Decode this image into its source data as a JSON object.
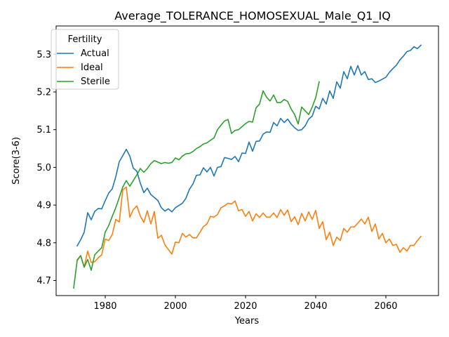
{
  "chart_data": {
    "type": "line",
    "title": "Average_TOLERANCE_HOMOSEXUAL_Male_Q1_IQ",
    "xlabel": "Years",
    "ylabel": "Score(3-6)",
    "xlim": [
      1966,
      2075
    ],
    "ylim": [
      4.66,
      5.375
    ],
    "xticks": [
      1980,
      2000,
      2020,
      2040,
      2060
    ],
    "yticks": [
      4.7,
      4.8,
      4.9,
      5.0,
      5.1,
      5.2,
      5.3
    ],
    "grid": false,
    "legend": {
      "title": "Fertility",
      "placement": "top-left"
    },
    "series": [
      {
        "name": "Actual",
        "color": "#1f77b4",
        "x": [
          1972,
          1973,
          1974,
          1975,
          1976,
          1977,
          1978,
          1979,
          1980,
          1981,
          1982,
          1983,
          1984,
          1985,
          1986,
          1987,
          1988,
          1989,
          1990,
          1991,
          1992,
          1993,
          1994,
          1995,
          1996,
          1997,
          1998,
          1999,
          2000,
          2001,
          2002,
          2003,
          2004,
          2005,
          2006,
          2007,
          2008,
          2009,
          2010,
          2011,
          2012,
          2013,
          2014,
          2015,
          2016,
          2017,
          2018,
          2019,
          2020,
          2021,
          2022,
          2023,
          2024,
          2025,
          2026,
          2027,
          2028,
          2029,
          2030,
          2031,
          2032,
          2033,
          2034,
          2035,
          2036,
          2037,
          2038,
          2039,
          2040,
          2041,
          2042,
          2043,
          2044,
          2045,
          2046,
          2047,
          2048,
          2049,
          2050,
          2051,
          2052,
          2053,
          2054,
          2055,
          2056,
          2057,
          2058,
          2059,
          2060,
          2061,
          2062,
          2063,
          2064,
          2065,
          2066,
          2067,
          2068,
          2069,
          2070
        ],
        "values": [
          4.792,
          4.808,
          4.828,
          4.88,
          4.861,
          4.883,
          4.891,
          4.89,
          4.912,
          4.932,
          4.943,
          4.975,
          5.015,
          5.031,
          5.048,
          5.03,
          4.998,
          4.99,
          4.958,
          4.933,
          4.945,
          4.928,
          4.92,
          4.912,
          4.893,
          4.884,
          4.89,
          4.882,
          4.893,
          4.899,
          4.905,
          4.918,
          4.942,
          4.956,
          4.979,
          4.98,
          4.999,
          4.988,
          5.0,
          4.977,
          5.0,
          5.002,
          5.026,
          5.024,
          5.021,
          5.029,
          5.015,
          5.038,
          5.037,
          5.067,
          5.043,
          5.069,
          5.07,
          5.088,
          5.094,
          5.093,
          5.119,
          5.11,
          5.13,
          5.119,
          5.128,
          5.115,
          5.105,
          5.098,
          5.1,
          5.11,
          5.128,
          5.136,
          5.162,
          5.155,
          5.183,
          5.168,
          5.203,
          5.183,
          5.227,
          5.21,
          5.254,
          5.235,
          5.268,
          5.245,
          5.27,
          5.245,
          5.254,
          5.233,
          5.235,
          5.225,
          5.229,
          5.234,
          5.239,
          5.252,
          5.262,
          5.271,
          5.285,
          5.295,
          5.307,
          5.31,
          5.32,
          5.315,
          5.324
        ]
      },
      {
        "name": "Ideal",
        "color": "#ff7f0e",
        "x": [
          1972,
          1973,
          1974,
          1975,
          1976,
          1977,
          1978,
          1979,
          1980,
          1981,
          1982,
          1983,
          1984,
          1985,
          1986,
          1987,
          1988,
          1989,
          1990,
          1991,
          1992,
          1993,
          1994,
          1995,
          1996,
          1997,
          1998,
          1999,
          2000,
          2001,
          2002,
          2003,
          2004,
          2005,
          2006,
          2007,
          2008,
          2009,
          2010,
          2011,
          2012,
          2013,
          2014,
          2015,
          2016,
          2017,
          2018,
          2019,
          2020,
          2021,
          2022,
          2023,
          2024,
          2025,
          2026,
          2027,
          2028,
          2029,
          2030,
          2031,
          2032,
          2033,
          2034,
          2035,
          2036,
          2037,
          2038,
          2039,
          2040,
          2041,
          2042,
          2043,
          2044,
          2045,
          2046,
          2047,
          2048,
          2049,
          2050,
          2051,
          2052,
          2053,
          2054,
          2055,
          2056,
          2057,
          2058,
          2059,
          2060,
          2061,
          2062,
          2063,
          2064,
          2065,
          2066,
          2067,
          2068,
          2069,
          2070
        ],
        "values": [
          4.755,
          4.766,
          4.736,
          4.778,
          4.748,
          4.75,
          4.76,
          4.768,
          4.81,
          4.806,
          4.822,
          4.862,
          4.855,
          4.94,
          4.948,
          4.868,
          4.888,
          4.898,
          4.871,
          4.854,
          4.885,
          4.85,
          4.883,
          4.812,
          4.82,
          4.795,
          4.782,
          4.77,
          4.802,
          4.8,
          4.825,
          4.815,
          4.822,
          4.813,
          4.813,
          4.828,
          4.843,
          4.85,
          4.87,
          4.868,
          4.875,
          4.893,
          4.898,
          4.905,
          4.903,
          4.911,
          4.885,
          4.888,
          4.87,
          4.883,
          4.858,
          4.877,
          4.867,
          4.879,
          4.868,
          4.868,
          4.879,
          4.867,
          4.888,
          4.873,
          4.887,
          4.856,
          4.869,
          4.848,
          4.878,
          4.858,
          4.882,
          4.862,
          4.886,
          4.838,
          4.856,
          4.808,
          4.828,
          4.793,
          4.815,
          4.806,
          4.838,
          4.828,
          4.842,
          4.842,
          4.852,
          4.863,
          4.85,
          4.868,
          4.83,
          4.85,
          4.81,
          4.825,
          4.8,
          4.81,
          4.793,
          4.796,
          4.775,
          4.787,
          4.778,
          4.793,
          4.793,
          4.806,
          4.817
        ]
      },
      {
        "name": "Sterile",
        "color": "#2ca02c",
        "x": [
          1971,
          1972,
          1973,
          1974,
          1975,
          1976,
          1977,
          1978,
          1979,
          1980,
          1981,
          1982,
          1983,
          1984,
          1985,
          1986,
          1987,
          1988,
          1989,
          1990,
          1991,
          1992,
          1993,
          1994,
          1995,
          1996,
          1997,
          1998,
          1999,
          2000,
          2001,
          2002,
          2003,
          2004,
          2005,
          2006,
          2007,
          2008,
          2009,
          2010,
          2011,
          2012,
          2013,
          2014,
          2015,
          2016,
          2017,
          2018,
          2019,
          2020,
          2021,
          2022,
          2023,
          2024,
          2025,
          2026,
          2027,
          2028,
          2029,
          2030,
          2031,
          2032,
          2033,
          2034,
          2035,
          2036,
          2037,
          2038,
          2039,
          2040,
          2041
        ],
        "values": [
          4.68,
          4.753,
          4.766,
          4.735,
          4.756,
          4.727,
          4.768,
          4.778,
          4.787,
          4.828,
          4.846,
          4.87,
          4.893,
          4.92,
          4.948,
          4.965,
          4.95,
          4.965,
          4.98,
          4.997,
          4.987,
          4.997,
          5.01,
          5.018,
          5.014,
          5.01,
          5.013,
          5.011,
          5.013,
          5.025,
          5.02,
          5.03,
          5.036,
          5.037,
          5.042,
          5.05,
          5.055,
          5.062,
          5.065,
          5.072,
          5.078,
          5.1,
          5.112,
          5.123,
          5.127,
          5.09,
          5.098,
          5.1,
          5.108,
          5.116,
          5.122,
          5.12,
          5.158,
          5.168,
          5.203,
          5.186,
          5.176,
          5.192,
          5.172,
          5.172,
          5.18,
          5.175,
          5.155,
          5.14,
          5.115,
          5.16,
          5.15,
          5.14,
          5.16,
          5.185,
          5.227
        ]
      }
    ]
  }
}
